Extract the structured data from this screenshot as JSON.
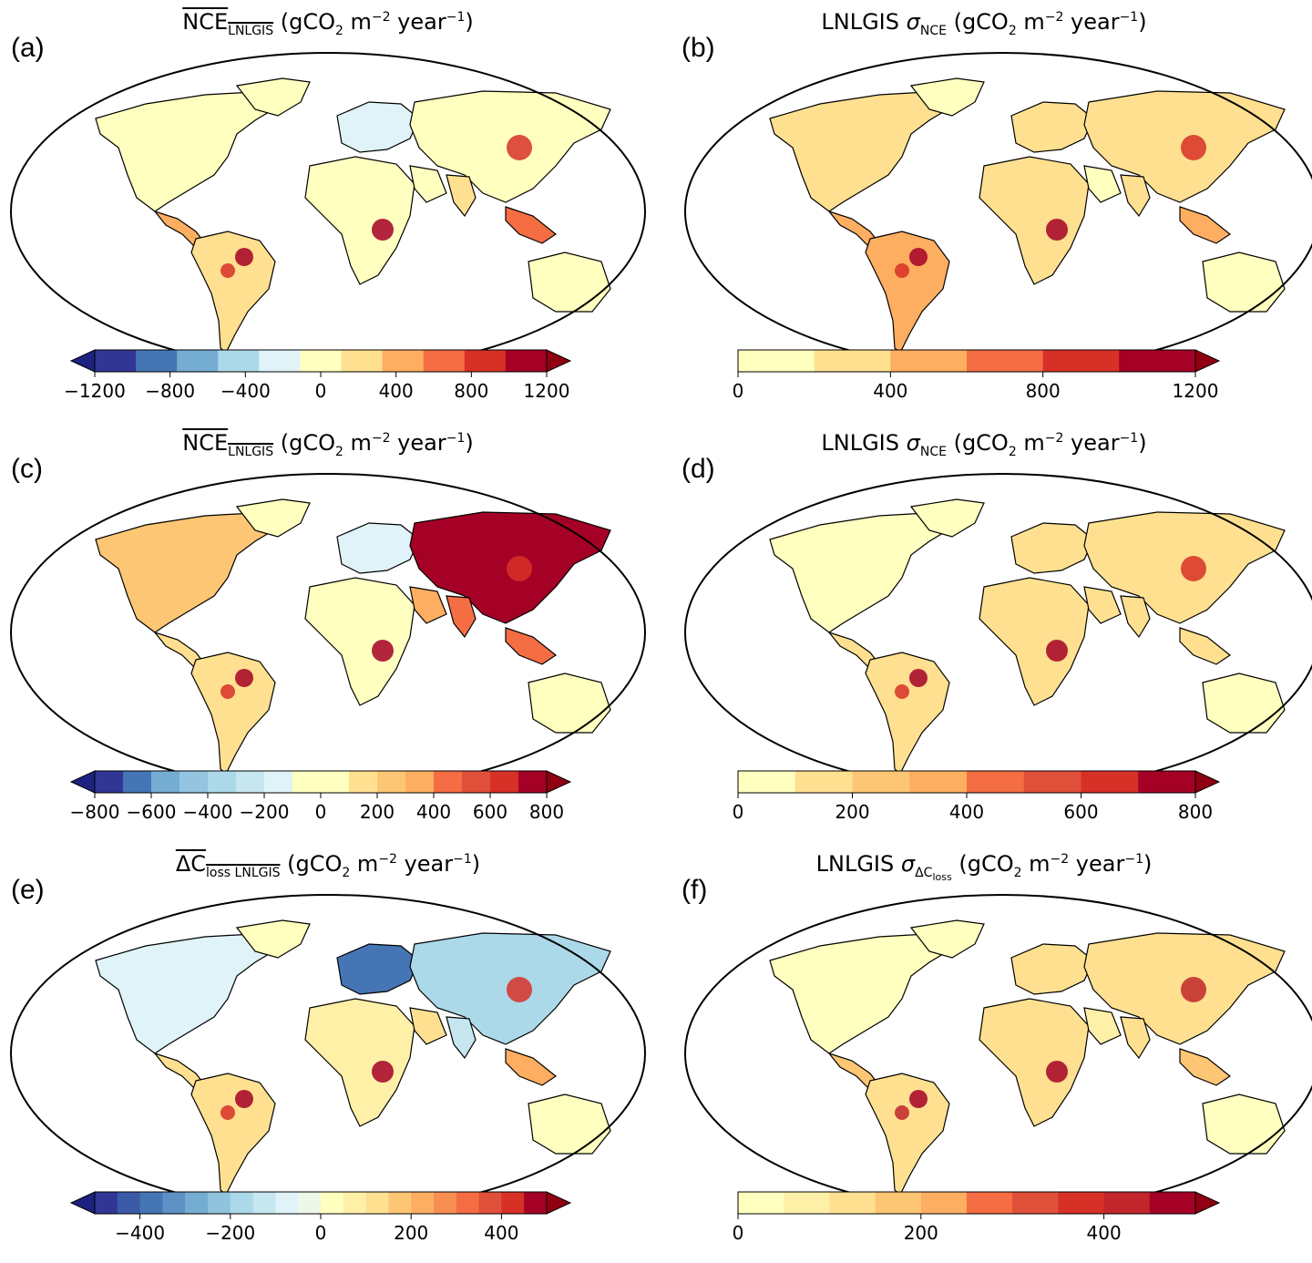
{
  "panels": [
    {
      "label": "(a)",
      "title_main": "NCE",
      "title_sub": "LNLGIS",
      "title_overline": true,
      "title_sigma": false,
      "title_units_pre": "gCO",
      "title_units_2": "2",
      "title_units_m": " m",
      "title_units_exp1": "−2",
      "title_units_year": " year",
      "title_units_exp2": "−1",
      "colorbar": {
        "ticks": [
          "−1200",
          "−800",
          "−400",
          "0",
          "400",
          "800",
          "1200"
        ],
        "tick_values": [
          -1200,
          -800,
          -400,
          0,
          400,
          800,
          1200
        ],
        "range": [
          -1200,
          1200
        ],
        "bins": [
          -1200,
          -1000,
          -800,
          -600,
          -400,
          -200,
          200,
          400,
          600,
          800,
          1000,
          1200
        ],
        "colors": [
          "#313695",
          "#4575b4",
          "#74add1",
          "#abd9e9",
          "#e0f3f8",
          "#ffffbf",
          "#fee090",
          "#fdae61",
          "#f46d43",
          "#d73027",
          "#a50026"
        ],
        "extend": "both"
      }
    },
    {
      "label": "(b)",
      "title_main": "LNLGIS ",
      "title_sigma": true,
      "title_sub": "NCE",
      "title_overline": false,
      "title_units_pre": "gCO",
      "title_units_2": "2",
      "title_units_m": " m",
      "title_units_exp1": "−2",
      "title_units_year": " year",
      "title_units_exp2": "−1",
      "colorbar": {
        "ticks": [
          "0",
          "400",
          "800",
          "1200"
        ],
        "tick_values": [
          0,
          400,
          800,
          1200
        ],
        "range": [
          0,
          1200
        ],
        "bins": [
          0,
          200,
          400,
          600,
          800,
          1000,
          1200
        ],
        "colors": [
          "#ffffbf",
          "#fee090",
          "#fdae61",
          "#f46d43",
          "#d73027",
          "#a50026"
        ],
        "extend": "max"
      }
    },
    {
      "label": "(c)",
      "title_main": "NCE",
      "title_sub": "LNLGIS",
      "title_overline": true,
      "title_sigma": false,
      "title_units_pre": "gCO",
      "title_units_2": "2",
      "title_units_m": " m",
      "title_units_exp1": "−2",
      "title_units_year": " year",
      "title_units_exp2": "−1",
      "colorbar": {
        "ticks": [
          "−800",
          "−600",
          "−400",
          "−200",
          "0",
          "200",
          "400",
          "600",
          "800"
        ],
        "tick_values": [
          -800,
          -600,
          -400,
          -200,
          0,
          200,
          400,
          600,
          800
        ],
        "range": [
          -800,
          800
        ],
        "bins": [
          -800,
          -700,
          -600,
          -500,
          -400,
          -300,
          -200,
          -100,
          0,
          100,
          200,
          300,
          400,
          500,
          600,
          700,
          800
        ],
        "colors": [
          "#313695",
          "#4575b4",
          "#74add1",
          "#94c4df",
          "#abd9e9",
          "#c6e6f0",
          "#e0f3f8",
          "#ffffbf",
          "#ffffbf",
          "#fee090",
          "#fdc675",
          "#fdae61",
          "#f46d43",
          "#e04f39",
          "#d73027",
          "#a50026"
        ],
        "extend": "both"
      }
    },
    {
      "label": "(d)",
      "title_main": "LNLGIS ",
      "title_sigma": true,
      "title_sub": "NCE",
      "title_overline": false,
      "title_units_pre": "gCO",
      "title_units_2": "2",
      "title_units_m": " m",
      "title_units_exp1": "−2",
      "title_units_year": " year",
      "title_units_exp2": "−1",
      "colorbar": {
        "ticks": [
          "0",
          "200",
          "400",
          "600",
          "800"
        ],
        "tick_values": [
          0,
          200,
          400,
          600,
          800
        ],
        "range": [
          0,
          800
        ],
        "bins": [
          0,
          100,
          200,
          300,
          400,
          500,
          600,
          700,
          800
        ],
        "colors": [
          "#ffffbf",
          "#fee090",
          "#fdc675",
          "#fdae61",
          "#f46d43",
          "#e04f39",
          "#d73027",
          "#a50026"
        ],
        "extend": "max"
      }
    },
    {
      "label": "(e)",
      "title_main": "ΔC",
      "title_sub": "loss LNLGIS",
      "title_overline": true,
      "title_sigma": false,
      "title_units_pre": "gCO",
      "title_units_2": "2",
      "title_units_m": " m",
      "title_units_exp1": "−2",
      "title_units_year": " year",
      "title_units_exp2": "−1",
      "colorbar": {
        "ticks": [
          "−400",
          "−200",
          "0",
          "200",
          "400"
        ],
        "tick_values": [
          -400,
          -200,
          0,
          200,
          400
        ],
        "range": [
          -500,
          500
        ],
        "bins": [
          -500,
          -450,
          -400,
          -350,
          -300,
          -250,
          -200,
          -150,
          -100,
          -50,
          0,
          50,
          100,
          150,
          200,
          250,
          300,
          350,
          400,
          450,
          500
        ],
        "colors": [
          "#313695",
          "#3a5aa8",
          "#4575b4",
          "#5e91c3",
          "#74add1",
          "#90c3de",
          "#abd9e9",
          "#c6e6f0",
          "#e0f3f8",
          "#edf8e9",
          "#ffffbf",
          "#fff0a8",
          "#fee090",
          "#fdc675",
          "#fdae61",
          "#f88e52",
          "#f46d43",
          "#e04f39",
          "#d73027",
          "#a50026"
        ],
        "extend": "both"
      }
    },
    {
      "label": "(f)",
      "title_main": "LNLGIS ",
      "title_sigma": true,
      "title_sub": "ΔC",
      "title_subsub": "loss",
      "title_overline": false,
      "title_units_pre": "gCO",
      "title_units_2": "2",
      "title_units_m": " m",
      "title_units_exp1": "−2",
      "title_units_year": " year",
      "title_units_exp2": "−1",
      "colorbar": {
        "ticks": [
          "0",
          "200",
          "400"
        ],
        "tick_values": [
          0,
          200,
          400
        ],
        "range": [
          0,
          500
        ],
        "bins": [
          0,
          50,
          100,
          150,
          200,
          250,
          300,
          350,
          400,
          450,
          500
        ],
        "colors": [
          "#ffffbf",
          "#fff0a8",
          "#fee090",
          "#fdc675",
          "#fdae61",
          "#f46d43",
          "#e04f39",
          "#d73027",
          "#c0262a",
          "#a50026"
        ],
        "extend": "max"
      }
    }
  ]
}
